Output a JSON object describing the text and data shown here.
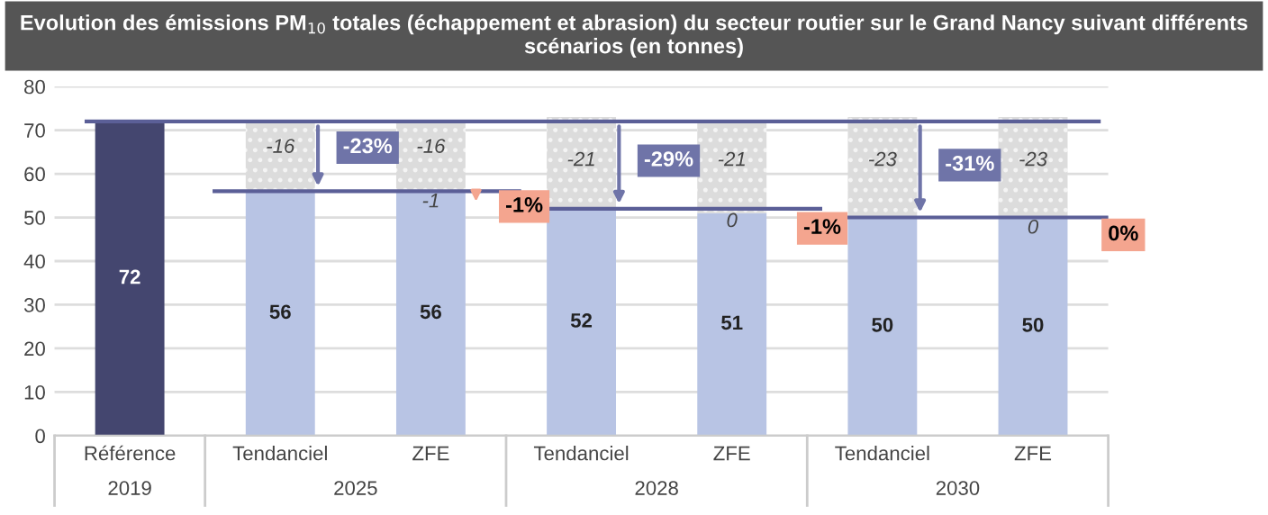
{
  "chart_data": {
    "type": "bar",
    "stacked": true,
    "title": "Evolution des émissions PM$_{10}$ totales (échappement et abrasion) du secteur routier sur le Grand Nancy suivant différents scénarios",
    "subtitle": "(en tonnes)",
    "categories": [
      "Référence",
      "Tendanciel",
      "ZFE",
      "Tendanciel",
      "ZFE",
      "Tendanciel",
      "ZFE"
    ],
    "series": [
      {
        "colors": [
          "#44466f",
          "#b8c4e4",
          "#b8c4e4",
          "#b8c4e4",
          "#b8c4e4",
          "#b8c4e4",
          "#b8c4e4"
        ],
        "values": [
          72,
          56,
          56,
          52,
          51,
          50,
          50
        ],
        "value_labels": [
          "72",
          "56",
          "56",
          "52",
          "51",
          "50",
          "50"
        ]
      },
      {
        "color": "#dcdcdc",
        "values": [
          null,
          16,
          16,
          21,
          21,
          23,
          23
        ]
      }
    ],
    "ref_lines": [
      {
        "axis": "y",
        "value": 72,
        "color": "#5b5f97"
      },
      {
        "axis": "y",
        "value": 56,
        "color": "#5b5f97"
      },
      {
        "axis": "y",
        "value": 52,
        "color": "#5b5f97"
      },
      {
        "axis": "y",
        "value": 50,
        "color": "#5b5f97"
      }
    ],
    "annotations": [
      "2019",
      "2025",
      "2028",
      "2030",
      "-23%",
      "-1%",
      "-29%",
      "-1%",
      "-31%",
      "0%",
      "-1",
      "0",
      "0",
      "-16",
      "-16",
      "-21",
      "-21",
      "-23",
      "-23"
    ],
    "ylim": [
      0,
      80
    ],
    "yticks": [
      0,
      10,
      20,
      30,
      40,
      50,
      60,
      70,
      80
    ],
    "grid": "y",
    "legend": false
  }
}
